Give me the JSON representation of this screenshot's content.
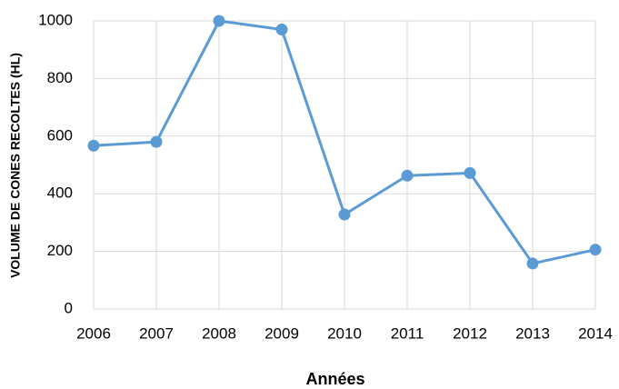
{
  "chart_data": {
    "type": "line",
    "x_label": "Années",
    "y_label": "VOLUME DE CONES RECOLTES (HL)",
    "x": [
      2006,
      2007,
      2008,
      2009,
      2010,
      2011,
      2012,
      2013,
      2014
    ],
    "values": [
      567,
      580,
      1000,
      970,
      328,
      463,
      472,
      158,
      206
    ],
    "color": "#5b9bd5",
    "xlim": [
      2006,
      2014
    ],
    "xticks": [
      2006,
      2007,
      2008,
      2009,
      2010,
      2011,
      2012,
      2013,
      2014
    ],
    "ylim": [
      0,
      1000
    ],
    "yticks": [
      0,
      200,
      400,
      600,
      800,
      1000
    ],
    "grid": true
  }
}
